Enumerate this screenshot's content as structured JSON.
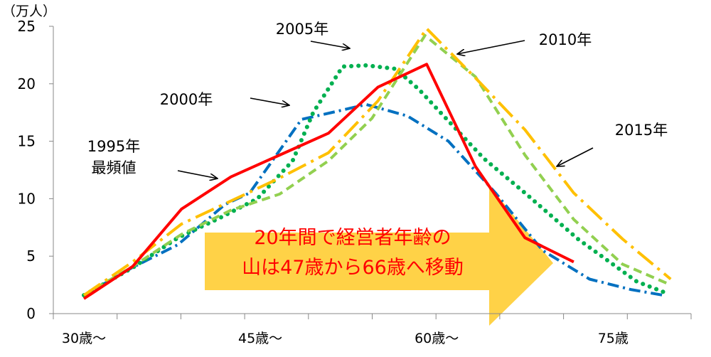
{
  "chart_data": {
    "type": "line",
    "unit_label": "（万人）",
    "ylim": [
      0,
      25
    ],
    "yticks": [
      0,
      5,
      10,
      15,
      20,
      25
    ],
    "x_index_range": [
      0,
      10
    ],
    "xtick_labels": [
      {
        "index": 0,
        "label": "30歳～"
      },
      {
        "index": 3,
        "label": "45歳～"
      },
      {
        "index": 6,
        "label": "60歳～"
      },
      {
        "index": 9,
        "label": "75歳"
      }
    ],
    "grid": false,
    "series": [
      {
        "name": "1995年",
        "color": "#0070C0",
        "dash": "dashdot",
        "x": [
          0,
          0.82,
          1.6,
          2.4,
          2.82,
          3.7,
          4.3,
          4.8,
          5.5,
          6.2,
          7,
          7.8,
          8.6,
          9.3,
          9.85
        ],
        "values": [
          1.6,
          4,
          6,
          9.5,
          10.5,
          16.9,
          17.6,
          18.2,
          17.2,
          15,
          10.5,
          5.5,
          3,
          2.1,
          1.6
        ]
      },
      {
        "name": "2000年",
        "color": "#00B050",
        "dash": "dot",
        "x": [
          0,
          0.83,
          1.6,
          2.3,
          2.95,
          3.55,
          3.9,
          4.4,
          4.8,
          5.3,
          5.7,
          6.1,
          6.8,
          7.5,
          8.4,
          9.4,
          9.9
        ],
        "values": [
          1.6,
          4,
          6.6,
          8.3,
          10,
          13.3,
          17.5,
          21.5,
          21.6,
          21.3,
          19.5,
          17.3,
          13.5,
          10.5,
          6.5,
          2.8,
          1.8
        ]
      },
      {
        "name": "2005年",
        "color": "#92D050",
        "dash": "dash",
        "x": [
          0,
          0.83,
          1.66,
          2.5,
          3.33,
          4.16,
          4.9,
          5.8,
          6.66,
          7.5,
          8.33,
          9.16,
          9.98
        ],
        "values": [
          1.6,
          4.1,
          6.9,
          9,
          10.4,
          13.3,
          17,
          24.2,
          20.6,
          13.8,
          8.2,
          4.3,
          2.5
        ]
      },
      {
        "name": "2010年",
        "color": "#FFC000",
        "dash": "longdashdot",
        "x": [
          0,
          0.83,
          1.66,
          2.5,
          3.33,
          4.16,
          5,
          5.83,
          6.66,
          7.5,
          8.33,
          9.16,
          9.98
        ],
        "values": [
          1.6,
          4.5,
          7.8,
          9.8,
          11.8,
          14,
          18.5,
          24.8,
          20.5,
          16,
          10.5,
          6.5,
          3
        ]
      },
      {
        "name": "2015年",
        "color": "#FF0000",
        "dash": "solid",
        "x": [
          0,
          0.83,
          1.66,
          2.5,
          3.33,
          4.16,
          5,
          5.83,
          6.66,
          7.5,
          8.33,
          9.16,
          9.98
        ],
        "values": [
          1.3,
          4.1,
          9.1,
          11.9,
          13.8,
          15.7,
          19.7,
          21.7,
          12.8,
          6.6,
          4.5,
          null,
          null
        ]
      }
    ],
    "annotations": [
      {
        "key": "a1995",
        "lines": [
          "1995年",
          "最頻値"
        ]
      },
      {
        "key": "a2000",
        "lines": [
          "2000年"
        ]
      },
      {
        "key": "a2005",
        "lines": [
          "2005年"
        ]
      },
      {
        "key": "a2010",
        "lines": [
          "2010年"
        ]
      },
      {
        "key": "a2015",
        "lines": [
          "2015年"
        ]
      }
    ],
    "callout": {
      "lines": [
        "20年間で経営者年齢の",
        "山は47歳から66歳へ移動"
      ],
      "fill": "#FFC000",
      "text_color": "#FF0000"
    }
  }
}
